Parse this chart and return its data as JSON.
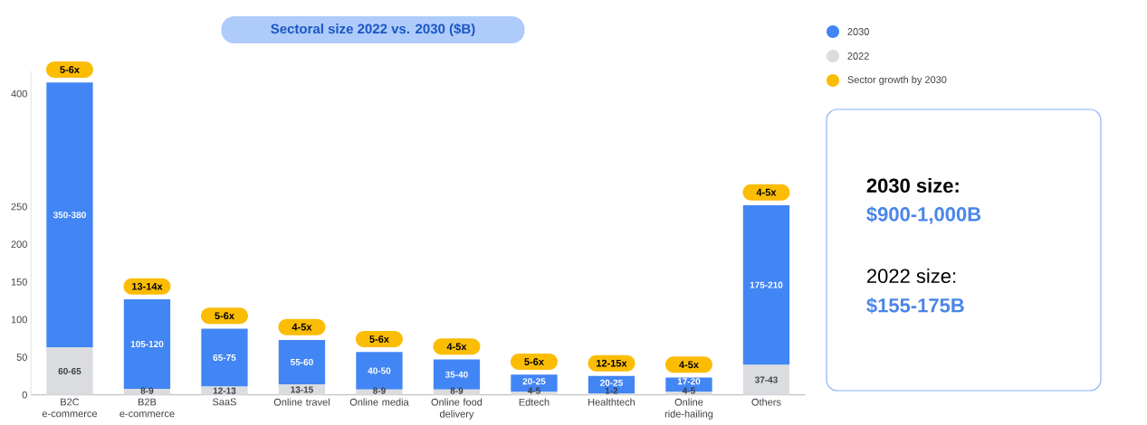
{
  "chart_data": {
    "type": "bar",
    "title": "Sectoral size 2022 vs. 2030 ($B)",
    "categories": [
      "B2C e-commerce",
      "B2B e-commerce",
      "SaaS",
      "Online travel",
      "Online media",
      "Online food delivery",
      "Edtech",
      "Healthtech",
      "Online ride-hailing",
      "Others"
    ],
    "series": [
      {
        "name": "2022",
        "color": "#dadce0",
        "values": [
          63,
          8,
          11,
          14,
          7,
          7,
          4,
          2,
          4,
          40
        ],
        "value_labels": [
          "60-65",
          "8-9",
          "12-13",
          "13-15",
          "8-9",
          "8-9",
          "4-5",
          "1-2",
          "4-5",
          "37-43"
        ]
      },
      {
        "name": "2030",
        "color": "#4285f4",
        "values": [
          352,
          119,
          77,
          59,
          50,
          40,
          23,
          23,
          19,
          212
        ],
        "value_labels": [
          "350-380",
          "105-120",
          "65-75",
          "55-60",
          "40-50",
          "35-40",
          "20-25",
          "20-25",
          "17-20",
          "175-210"
        ]
      }
    ],
    "stacked": true,
    "ylim": [
      0,
      430
    ],
    "yticks": [
      0,
      50,
      100,
      150,
      200,
      250,
      400
    ],
    "legend": "top right",
    "annotations": [
      {
        "text": "5-6x",
        "x": "B2C e-commerce",
        "y": 415
      },
      {
        "text": "13-14x",
        "x": "B2B e-commerce",
        "y": 127
      },
      {
        "text": "5-6x",
        "x": "SaaS",
        "y": 88
      },
      {
        "text": "4-5x",
        "x": "Online travel",
        "y": 73
      },
      {
        "text": "5-6x",
        "x": "Online media",
        "y": 57
      },
      {
        "text": "4-5x",
        "x": "Online food delivery",
        "y": 47
      },
      {
        "text": "5-6x",
        "x": "Edtech",
        "y": 27
      },
      {
        "text": "12-15x",
        "x": "Healthtech",
        "y": 25
      },
      {
        "text": "4-5x",
        "x": "Online ride-hailing",
        "y": 23
      },
      {
        "text": "4-5x",
        "x": "Others",
        "y": 252
      },
      "Sector growth by 2030",
      "2030 size:",
      "$900-1,000B",
      "2022 size:",
      "$155-175B"
    ]
  }
}
